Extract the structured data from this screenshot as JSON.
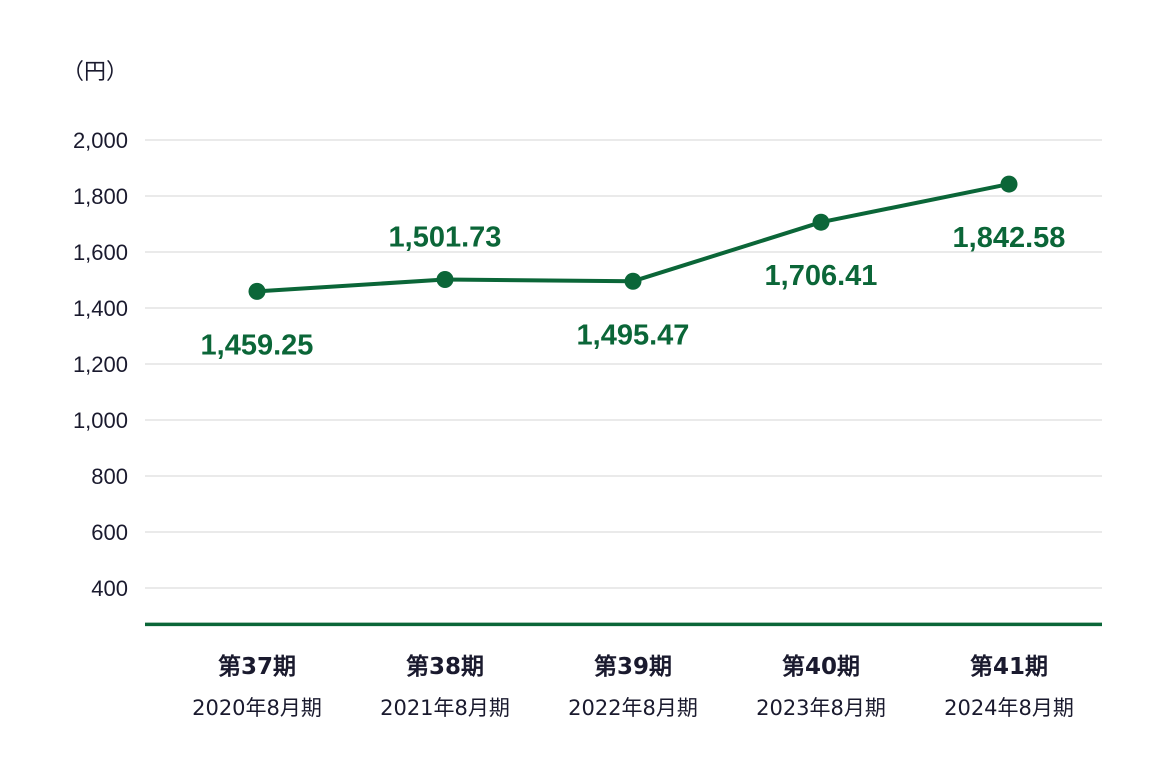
{
  "chart_data": {
    "type": "line",
    "unit_label": "（円）",
    "ylim": [
      270,
      2000
    ],
    "yticks": [
      400,
      600,
      800,
      1000,
      1200,
      1400,
      1600,
      1800,
      2000
    ],
    "ytick_labels": [
      "400",
      "600",
      "800",
      "1,000",
      "1,200",
      "1,400",
      "1,600",
      "1,800",
      "2,000"
    ],
    "categories": [
      "第37期",
      "第38期",
      "第39期",
      "第40期",
      "第41期"
    ],
    "category_sublabels": [
      "2020年8月期",
      "2021年8月期",
      "2022年8月期",
      "2023年8月期",
      "2024年8月期"
    ],
    "series": [
      {
        "values": [
          1459.25,
          1501.73,
          1495.47,
          1706.41,
          1842.58
        ],
        "value_labels": [
          "1,459.25",
          "1,501.73",
          "1,495.47",
          "1,706.41",
          "1,842.58"
        ],
        "label_positions": [
          "below",
          "above",
          "below",
          "below",
          "below"
        ]
      }
    ],
    "grid": true,
    "colors": {
      "line": "#0b6638",
      "axis": "#0b6638",
      "grid": "#e3e3e3",
      "text": "#1a1a2e"
    }
  }
}
